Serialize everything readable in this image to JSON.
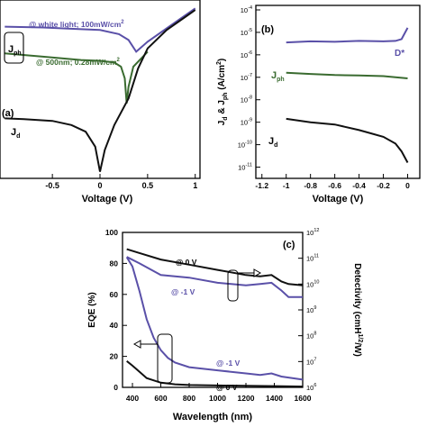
{
  "chart_data": [
    {
      "panel_label": "(a)",
      "type": "line",
      "xlabel": "Voltage (V)",
      "ylabel": "",
      "xlim": [
        -1.05,
        1.05
      ],
      "ylim": [
        -11.2,
        -0.5
      ],
      "x_tick_labels": [
        "-0.5",
        "0",
        "0.5",
        "1"
      ],
      "x_tick_values": [
        -0.5,
        0,
        0.5,
        1
      ],
      "annotations": {
        "white_light": "@ white light; 100mW/cm",
        "white_light_sup": "2",
        "nm500": "@ 500nm; 0.28mW/cm",
        "nm500_sup": "2",
        "jph": "J",
        "jph_sub": "ph",
        "jd": "J",
        "jd_sub": "d"
      },
      "series": [
        {
          "color": "#5a50a8",
          "x": [
            -1.0,
            -0.6,
            -0.2,
            0.0,
            0.2,
            0.3,
            0.38,
            0.5,
            0.7,
            0.9,
            1.0
          ],
          "y": [
            -2.1,
            -2.15,
            -2.25,
            -2.3,
            -2.55,
            -2.9,
            -3.6,
            -3.0,
            -2.2,
            -1.4,
            -1.0
          ]
        },
        {
          "color": "#3a6b30",
          "x": [
            -1.0,
            -0.6,
            -0.2,
            0.0,
            0.15,
            0.22,
            0.26,
            0.28,
            0.3,
            0.35,
            0.5
          ],
          "y": [
            -3.7,
            -3.9,
            -4.1,
            -4.15,
            -4.25,
            -4.5,
            -5.2,
            -6.7,
            -5.7,
            -4.5,
            -3.6
          ]
        },
        {
          "color": "#111111",
          "x": [
            -1.0,
            -0.8,
            -0.5,
            -0.3,
            -0.15,
            -0.05,
            0.0,
            0.05,
            0.15,
            0.3,
            0.4,
            0.5,
            0.7,
            0.9,
            1.0
          ],
          "y": [
            -7.6,
            -7.65,
            -7.75,
            -8.0,
            -8.4,
            -9.3,
            -10.8,
            -9.5,
            -8.0,
            -6.4,
            -4.6,
            -3.4,
            -2.3,
            -1.5,
            -1.1
          ]
        }
      ]
    },
    {
      "panel_label": "(b)",
      "type": "line",
      "xlabel": "Voltage (V)",
      "ylabel": "J",
      "ylabel_parts": [
        "J",
        "d",
        " & J",
        "ph",
        " (A/cm",
        "2",
        ")"
      ],
      "xlim": [
        -1.25,
        0.1
      ],
      "ylim": [
        -11.5,
        -3.8
      ],
      "log_y": true,
      "x_tick_values": [
        -1.2,
        -1,
        -0.8,
        -0.6,
        -0.4,
        -0.2,
        0
      ],
      "x_tick_labels": [
        "-1.2",
        "-1",
        "-0.8",
        "-0.6",
        "-0.4",
        "-0.2",
        "0"
      ],
      "y_tick_exponents": [
        -11,
        -10,
        -9,
        -8,
        -7,
        -6,
        -5,
        -4
      ],
      "y_tick_base": "10",
      "annotations": {
        "dstar": "D*",
        "jph": "J",
        "jph_sub": "ph",
        "jd": "J",
        "jd_sub": "d"
      },
      "series": [
        {
          "color": "#5a50a8",
          "x": [
            -1.0,
            -0.8,
            -0.6,
            -0.4,
            -0.2,
            -0.1,
            -0.05,
            0.0
          ],
          "y": [
            -5.45,
            -5.4,
            -5.42,
            -5.38,
            -5.4,
            -5.38,
            -5.3,
            -4.8
          ]
        },
        {
          "color": "#3a6b30",
          "x": [
            -1.0,
            -0.8,
            -0.6,
            -0.4,
            -0.2,
            -0.1,
            0.0
          ],
          "y": [
            -6.8,
            -6.85,
            -6.9,
            -6.92,
            -6.95,
            -7.0,
            -7.05
          ]
        },
        {
          "color": "#111111",
          "x": [
            -1.0,
            -0.8,
            -0.6,
            -0.4,
            -0.3,
            -0.2,
            -0.1,
            -0.05,
            0.0
          ],
          "y": [
            -8.85,
            -9.0,
            -9.1,
            -9.35,
            -9.5,
            -9.65,
            -9.95,
            -10.3,
            -10.8
          ]
        }
      ]
    },
    {
      "panel_label": "(c)",
      "type": "line",
      "xlabel": "Wavelength (nm)",
      "ylabel": "EQE (%)",
      "ylabel_right": "Detectivity (cmH",
      "ylabel_right_parts": [
        "Detectivity (cmH",
        "1/2",
        "/W)"
      ],
      "xlim": [
        330,
        1600
      ],
      "ylim": [
        0,
        100
      ],
      "x_tick_values": [
        400,
        600,
        800,
        1000,
        1200,
        1400,
        1600
      ],
      "x_tick_labels": [
        "400",
        "600",
        "800",
        "1000",
        "1200",
        "1400",
        "1600"
      ],
      "y_tick_values": [
        0,
        20,
        40,
        60,
        80,
        100
      ],
      "y_tick_labels": [
        "0",
        "20",
        "40",
        "60",
        "80",
        "100"
      ],
      "y2_tick_exponents": [
        6,
        7,
        8,
        9,
        10,
        11,
        12
      ],
      "y2_tick_base": "10",
      "y2lim": [
        6,
        12
      ],
      "annotations": {
        "top_0v": "@ 0 V",
        "top_m1v": "@ -1 V",
        "bot_m1v": "@ -1 V",
        "bot_0v": "@ 0 V"
      },
      "series": [
        {
          "axis": "right",
          "color": "#111111",
          "x": [
            360,
            450,
            600,
            800,
            1000,
            1200,
            1300,
            1380,
            1450,
            1500,
            1600
          ],
          "y": [
            11.35,
            11.2,
            10.95,
            10.75,
            10.55,
            10.35,
            10.3,
            10.35,
            10.1,
            10.0,
            9.95
          ]
        },
        {
          "axis": "right",
          "color": "#5a50a8",
          "x": [
            360,
            450,
            600,
            800,
            1000,
            1200,
            1300,
            1380,
            1450,
            1500,
            1600
          ],
          "y": [
            11.05,
            10.8,
            10.35,
            10.25,
            10.05,
            9.95,
            10.0,
            10.05,
            9.75,
            9.5,
            9.5
          ]
        },
        {
          "axis": "left",
          "color": "#5a50a8",
          "x": [
            360,
            400,
            450,
            500,
            550,
            600,
            650,
            700,
            800,
            1000,
            1200,
            1300,
            1380,
            1450,
            1600
          ],
          "y": [
            84,
            78,
            62,
            44,
            32,
            24,
            19,
            16,
            13,
            11,
            9,
            8,
            9,
            7,
            5
          ]
        },
        {
          "axis": "left",
          "color": "#111111",
          "x": [
            360,
            400,
            450,
            500,
            600,
            700,
            800,
            1000,
            1200,
            1400,
            1600
          ],
          "y": [
            17,
            14,
            10,
            6,
            3,
            2,
            1.5,
            1.2,
            1.0,
            0.8,
            0.5
          ]
        }
      ]
    }
  ]
}
